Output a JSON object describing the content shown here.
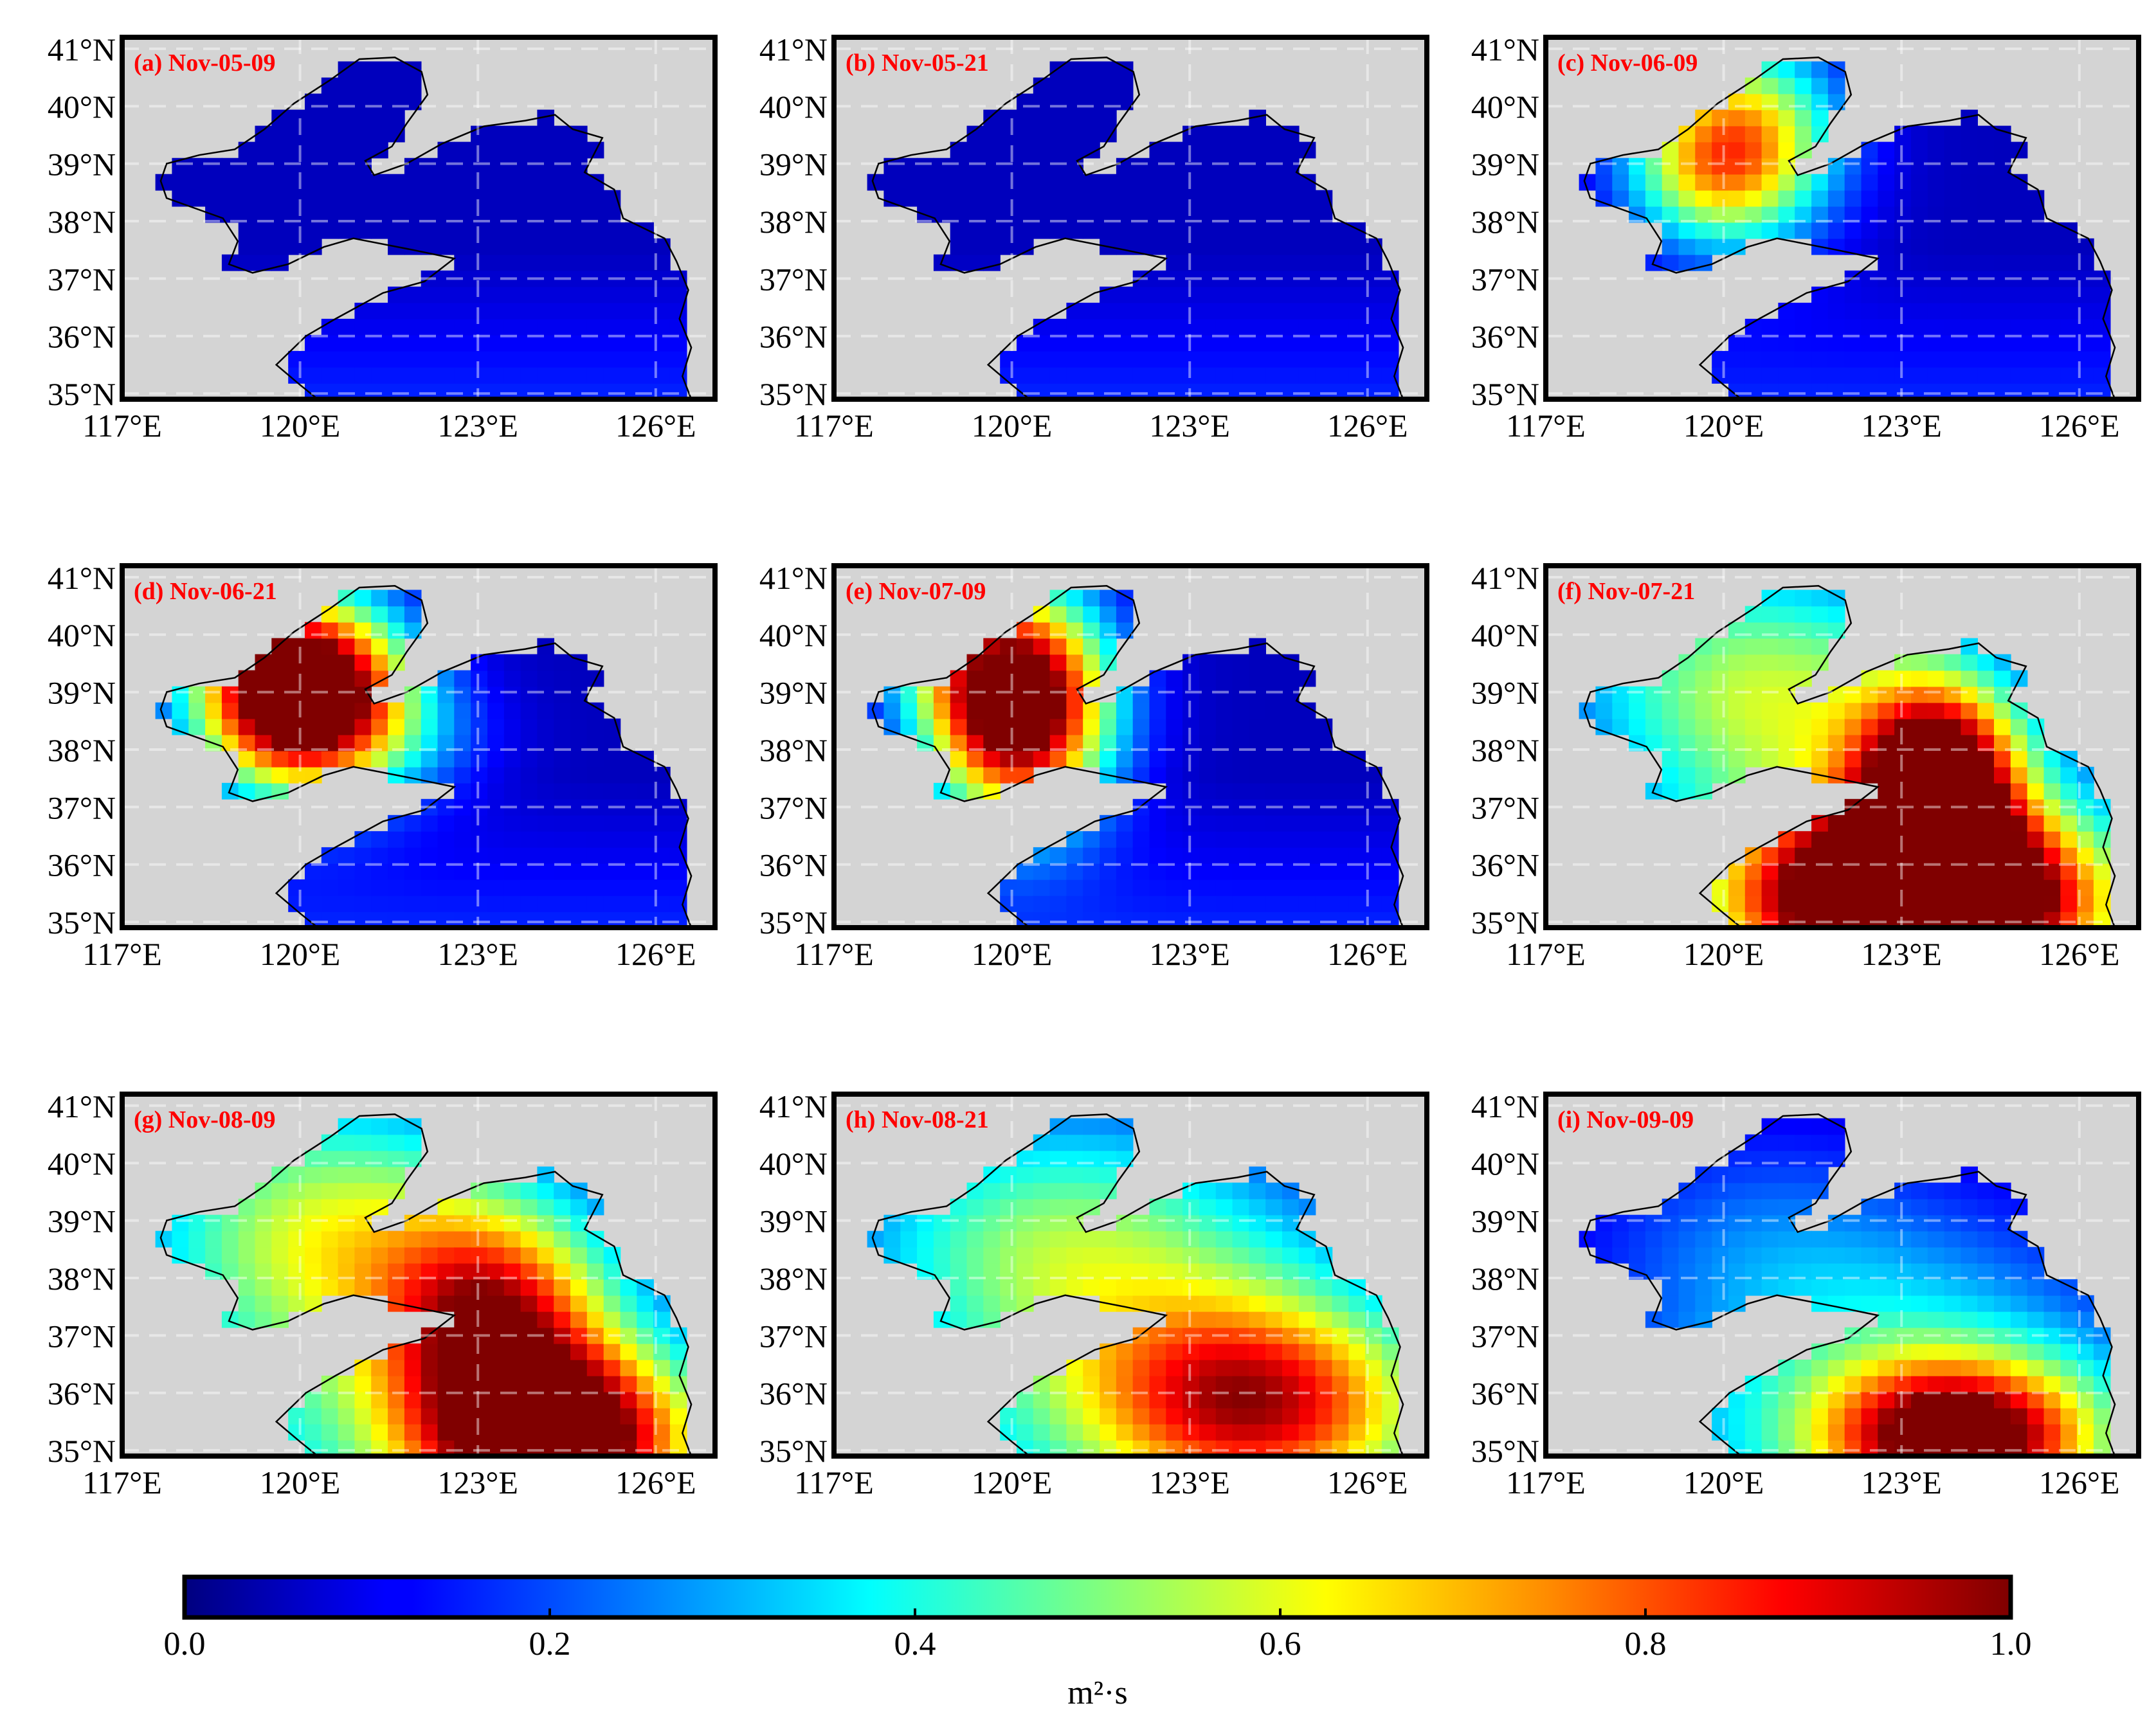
{
  "figure": {
    "lat_labels": [
      "35°N",
      "36°N",
      "37°N",
      "38°N",
      "39°N",
      "40°N",
      "41°N"
    ],
    "lon_labels": [
      "117°E",
      "120°E",
      "123°E",
      "126°E"
    ],
    "lon_range": [
      117,
      127
    ],
    "lat_range": [
      34.9,
      41.2
    ],
    "panels": [
      {
        "label": "(a) Nov-05-09",
        "blobs": []
      },
      {
        "label": "(b) Nov-05-21",
        "blobs": []
      },
      {
        "label": "(c) Nov-06-09",
        "blobs": [
          {
            "lon": 120.3,
            "lat": 39.4,
            "rlon": 1.6,
            "rlat": 1.7,
            "amp": 0.65
          },
          {
            "lon": 119.5,
            "lat": 38.8,
            "rlon": 1.4,
            "rlat": 1.2,
            "amp": 0.2
          }
        ]
      },
      {
        "label": "(d) Nov-06-21",
        "blobs": [
          {
            "lon": 120.0,
            "lat": 39.0,
            "rlon": 1.7,
            "rlat": 1.6,
            "amp": 1.3
          },
          {
            "lon": 121.8,
            "lat": 38.2,
            "rlon": 1.6,
            "rlat": 1.1,
            "amp": 0.12
          }
        ]
      },
      {
        "label": "(e) Nov-07-09",
        "blobs": [
          {
            "lon": 120.1,
            "lat": 38.8,
            "rlon": 1.5,
            "rlat": 1.9,
            "amp": 1.15
          },
          {
            "lon": 119.0,
            "lat": 39.3,
            "rlon": 1.3,
            "rlat": 1.0,
            "amp": 0.15
          }
        ]
      },
      {
        "label": "(f) Nov-07-21",
        "blobs": [
          {
            "lon": 123.3,
            "lat": 35.4,
            "rlon": 2.8,
            "rlat": 1.4,
            "amp": 1.2
          },
          {
            "lon": 123.6,
            "lat": 37.3,
            "rlon": 1.3,
            "rlat": 1.7,
            "amp": 1.0
          },
          {
            "lon": 120.3,
            "lat": 39.2,
            "rlon": 3.0,
            "rlat": 2.2,
            "amp": 0.4
          },
          {
            "lon": 123.0,
            "lat": 36.5,
            "rlon": 3.8,
            "rlat": 3.2,
            "amp": 0.35
          }
        ]
      },
      {
        "label": "(g) Nov-08-09",
        "blobs": [
          {
            "lon": 124.3,
            "lat": 35.2,
            "rlon": 2.2,
            "rlat": 1.5,
            "amp": 0.9
          },
          {
            "lon": 123.3,
            "lat": 37.3,
            "rlon": 1.8,
            "rlat": 1.8,
            "amp": 0.55
          },
          {
            "lon": 120.3,
            "lat": 38.9,
            "rlon": 3.2,
            "rlat": 2.4,
            "amp": 0.4
          },
          {
            "lon": 122.5,
            "lat": 36.5,
            "rlon": 4.5,
            "rlat": 3.5,
            "amp": 0.3
          }
        ]
      },
      {
        "label": "(h) Nov-08-21",
        "blobs": [
          {
            "lon": 124.2,
            "lat": 35.8,
            "rlon": 2.8,
            "rlat": 1.8,
            "amp": 0.62
          },
          {
            "lon": 120.5,
            "lat": 38.8,
            "rlon": 3.5,
            "rlat": 2.3,
            "amp": 0.3
          },
          {
            "lon": 122.5,
            "lat": 37.0,
            "rlon": 4.5,
            "rlat": 3.0,
            "amp": 0.3
          }
        ]
      },
      {
        "label": "(i) Nov-09-09",
        "blobs": [
          {
            "lon": 124.0,
            "lat": 35.2,
            "rlon": 2.2,
            "rlat": 1.3,
            "amp": 0.82
          },
          {
            "lon": 123.0,
            "lat": 36.3,
            "rlon": 4.0,
            "rlat": 2.6,
            "amp": 0.32
          },
          {
            "lon": 120.5,
            "lat": 38.8,
            "rlon": 3.0,
            "rlat": 2.0,
            "amp": 0.12
          }
        ]
      }
    ]
  },
  "colorbar": {
    "ticks": [
      "0.0",
      "0.2",
      "0.4",
      "0.6",
      "0.8",
      "1.0"
    ],
    "unit": "m²·s",
    "colormap": "jet",
    "range": [
      0,
      1
    ]
  },
  "colors": {
    "land": "#d4d4d4",
    "frame": "#000000",
    "grid": "#ffffff",
    "panel_label": "#ff0000"
  }
}
